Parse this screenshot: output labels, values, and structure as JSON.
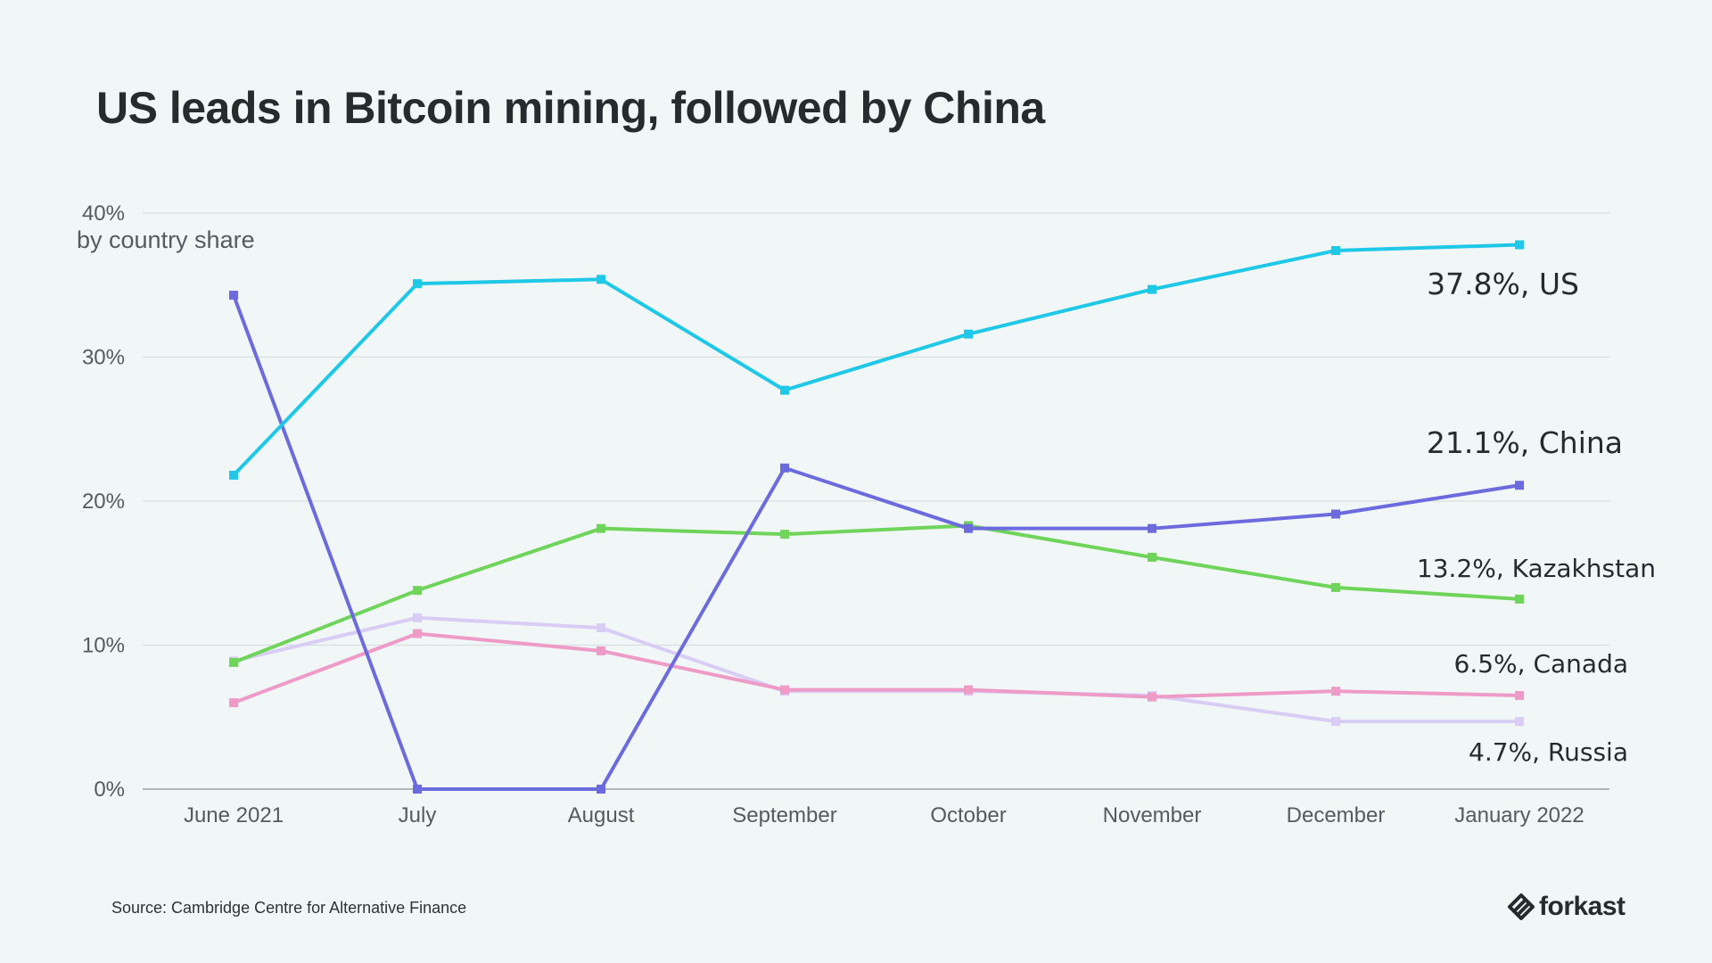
{
  "page": {
    "title": "US leads in Bitcoin mining, followed by China",
    "source": "Source: Cambridge Centre for Alternative Finance",
    "logo_text": "forkast"
  },
  "chart_data": {
    "type": "line",
    "title": "US leads in Bitcoin mining, followed by China",
    "ylabel": "by country share",
    "xlabel": "",
    "categories": [
      "June 2021",
      "July",
      "August",
      "September",
      "October",
      "November",
      "December",
      "January 2022"
    ],
    "ylim": [
      0,
      40
    ],
    "yticks": [
      0,
      10,
      20,
      30,
      40
    ],
    "ytick_labels": [
      "0%",
      "10%",
      "20%",
      "30%",
      "40%"
    ],
    "grid": true,
    "legend": "direct end labels",
    "series": [
      {
        "name": "US",
        "color": "#1ec8e6",
        "values": [
          21.8,
          35.1,
          35.4,
          27.7,
          31.6,
          34.7,
          37.4,
          37.8
        ],
        "end_label": "37.8%, US"
      },
      {
        "name": "China",
        "color": "#6c6bdd",
        "values": [
          34.3,
          0,
          0,
          22.3,
          18.1,
          18.1,
          19.1,
          21.1
        ],
        "end_label": "21.1%, China"
      },
      {
        "name": "Kazakhstan",
        "color": "#6fd45a",
        "values": [
          8.8,
          13.8,
          18.1,
          17.7,
          18.3,
          16.1,
          14.0,
          13.2
        ],
        "end_label": "13.2%, Kazakhstan"
      },
      {
        "name": "Canada",
        "color": "#ee9bc8",
        "values": [
          6.0,
          10.8,
          9.6,
          6.9,
          6.9,
          6.4,
          6.8,
          6.5
        ],
        "end_label": "6.5%, Canada"
      },
      {
        "name": "Russia",
        "color": "#d9cdf6",
        "values": [
          8.9,
          11.9,
          11.2,
          6.8,
          6.8,
          6.5,
          4.7,
          4.7
        ],
        "end_label": "4.7%, Russia"
      }
    ]
  }
}
